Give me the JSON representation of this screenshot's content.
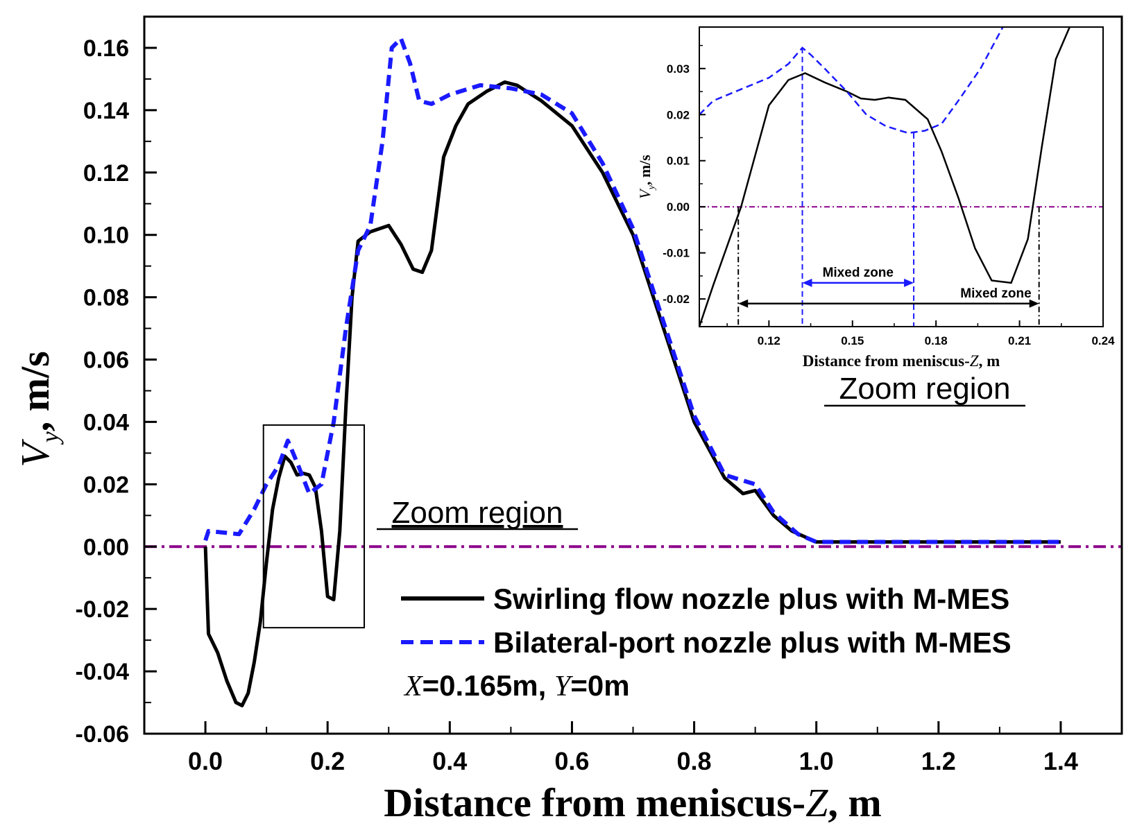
{
  "chart_data": [
    {
      "type": "line",
      "title": "",
      "xlabel_prefix": "Distance from meniscus-",
      "xlabel_var": "Z",
      "xlabel_suffix": ", m",
      "ylabel_var": "V",
      "ylabel_sub": "y",
      "ylabel_suffix": ", m/s",
      "xlim": [
        -0.1,
        1.5
      ],
      "ylim": [
        -0.06,
        0.17
      ],
      "xticks": [
        "0.0",
        "0.2",
        "0.4",
        "0.6",
        "0.8",
        "1.0",
        "1.2",
        "1.4"
      ],
      "yticks": [
        "-0.06",
        "-0.04",
        "-0.02",
        "0.00",
        "0.02",
        "0.04",
        "0.06",
        "0.08",
        "0.10",
        "0.12",
        "0.14",
        "0.16"
      ],
      "reference_line_y": 0.0,
      "series": [
        {
          "name": "Swirling flow nozzle plus with M-MES",
          "color": "#000000",
          "style": "solid",
          "x": [
            0.0,
            0.005,
            0.02,
            0.035,
            0.05,
            0.06,
            0.07,
            0.08,
            0.09,
            0.1,
            0.11,
            0.12,
            0.13,
            0.14,
            0.15,
            0.16,
            0.17,
            0.18,
            0.19,
            0.2,
            0.21,
            0.22,
            0.23,
            0.24,
            0.25,
            0.27,
            0.3,
            0.32,
            0.34,
            0.355,
            0.37,
            0.39,
            0.41,
            0.43,
            0.46,
            0.49,
            0.51,
            0.55,
            0.6,
            0.65,
            0.7,
            0.75,
            0.8,
            0.85,
            0.88,
            0.9,
            0.93,
            0.96,
            1.0,
            1.1,
            1.2,
            1.3,
            1.4
          ],
          "values": [
            0.0,
            -0.028,
            -0.034,
            -0.043,
            -0.05,
            -0.051,
            -0.047,
            -0.037,
            -0.024,
            -0.005,
            0.012,
            0.022,
            0.029,
            0.027,
            0.023,
            0.0235,
            0.023,
            0.019,
            0.005,
            -0.016,
            -0.017,
            0.005,
            0.045,
            0.08,
            0.098,
            0.101,
            0.103,
            0.097,
            0.089,
            0.088,
            0.095,
            0.125,
            0.135,
            0.142,
            0.146,
            0.149,
            0.148,
            0.143,
            0.135,
            0.12,
            0.1,
            0.07,
            0.04,
            0.022,
            0.017,
            0.018,
            0.01,
            0.005,
            0.0015,
            0.0015,
            0.0015,
            0.0015,
            0.0015
          ]
        },
        {
          "name": "Bilateral-port nozzle plus with M-MES",
          "color": "#1a1aff",
          "style": "dashed",
          "x": [
            0.0,
            0.005,
            0.03,
            0.055,
            0.08,
            0.1,
            0.12,
            0.135,
            0.15,
            0.17,
            0.19,
            0.21,
            0.23,
            0.25,
            0.27,
            0.29,
            0.305,
            0.32,
            0.335,
            0.35,
            0.37,
            0.4,
            0.45,
            0.5,
            0.55,
            0.6,
            0.65,
            0.7,
            0.75,
            0.8,
            0.85,
            0.9,
            0.93,
            0.97,
            1.0,
            1.1,
            1.2,
            1.3,
            1.4
          ],
          "values": [
            0.002,
            0.005,
            0.0045,
            0.004,
            0.012,
            0.02,
            0.026,
            0.034,
            0.027,
            0.017,
            0.02,
            0.04,
            0.07,
            0.095,
            0.103,
            0.13,
            0.16,
            0.163,
            0.155,
            0.143,
            0.142,
            0.145,
            0.148,
            0.147,
            0.145,
            0.139,
            0.123,
            0.102,
            0.072,
            0.042,
            0.023,
            0.02,
            0.011,
            0.004,
            0.0015,
            0.0015,
            0.0015,
            0.0015,
            0.0015
          ]
        }
      ],
      "zoom_box": {
        "x": [
          0.095,
          0.26
        ],
        "y": [
          -0.026,
          0.039
        ]
      },
      "zoom_label": "Zoom region",
      "legend_position": "bottom-right",
      "annotation_prefix_var_x": "X",
      "annotation_value_x": "=0.165m, ",
      "annotation_prefix_var_y": "Y",
      "annotation_value_y": "=0m"
    },
    {
      "type": "line",
      "title": "",
      "xlabel_prefix": "Distance from meniscus-",
      "xlabel_var": "Z",
      "xlabel_suffix": ", m",
      "ylabel_var": "V",
      "ylabel_sub": "y",
      "ylabel_suffix": ", m/s",
      "xlim": [
        0.095,
        0.24
      ],
      "ylim": [
        -0.026,
        0.039
      ],
      "xticks": [
        "0.12",
        "0.15",
        "0.18",
        "0.21",
        "0.24"
      ],
      "yticks": [
        "-0.02",
        "-0.01",
        "0.00",
        "0.01",
        "0.02",
        "0.03"
      ],
      "reference_line_y": 0.0,
      "series": [
        {
          "name": "Swirling flow nozzle plus with M-MES",
          "color": "#000000",
          "style": "solid",
          "x": [
            0.095,
            0.1,
            0.11,
            0.12,
            0.127,
            0.133,
            0.14,
            0.148,
            0.153,
            0.158,
            0.163,
            0.169,
            0.177,
            0.182,
            0.188,
            0.194,
            0.2,
            0.207,
            0.213,
            0.218,
            0.223,
            0.228
          ],
          "values": [
            -0.026,
            -0.017,
            0.0,
            0.022,
            0.0275,
            0.029,
            0.027,
            0.025,
            0.0235,
            0.0232,
            0.0237,
            0.0232,
            0.019,
            0.012,
            0.002,
            -0.009,
            -0.016,
            -0.0165,
            -0.007,
            0.013,
            0.032,
            0.039
          ]
        },
        {
          "name": "Bilateral-port nozzle plus with M-MES",
          "color": "#1a1aff",
          "style": "dashed",
          "x": [
            0.095,
            0.1,
            0.11,
            0.12,
            0.127,
            0.132,
            0.135,
            0.14,
            0.148,
            0.155,
            0.162,
            0.17,
            0.176,
            0.182,
            0.188,
            0.196,
            0.204
          ],
          "values": [
            0.02,
            0.023,
            0.0255,
            0.028,
            0.031,
            0.0345,
            0.033,
            0.03,
            0.025,
            0.02,
            0.0175,
            0.016,
            0.0165,
            0.018,
            0.023,
            0.03,
            0.039
          ]
        }
      ],
      "markers_x": [
        0.109,
        0.132,
        0.172,
        0.217
      ],
      "mixed_zone_blue": {
        "label": "Mixed zone",
        "x": [
          0.132,
          0.172
        ],
        "y": -0.0165
      },
      "mixed_zone_black": {
        "label": "Mixed zone",
        "x": [
          0.109,
          0.217
        ],
        "y": -0.021
      },
      "zoom_label": "Zoom region"
    }
  ]
}
